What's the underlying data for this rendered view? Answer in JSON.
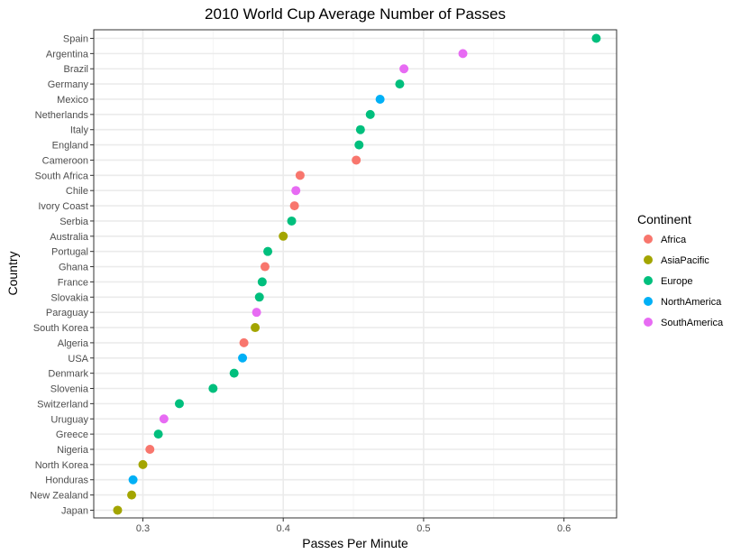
{
  "chart_data": {
    "type": "scatter",
    "title": "2010 World Cup Average Number of Passes",
    "xlabel": "Passes Per Minute",
    "ylabel": "Country",
    "xlim": [
      0.265,
      0.6375
    ],
    "x_ticks": [
      0.3,
      0.4,
      0.5,
      0.6
    ],
    "x_tick_labels": [
      "0.3",
      "0.4",
      "0.5",
      "0.6"
    ],
    "grid": true,
    "legend": {
      "title": "Continent",
      "position": "right",
      "entries": [
        {
          "name": "Africa",
          "color": "#F8766D"
        },
        {
          "name": "AsiaPacific",
          "color": "#A3A500"
        },
        {
          "name": "Europe",
          "color": "#00BF7D"
        },
        {
          "name": "NorthAmerica",
          "color": "#00B0F6"
        },
        {
          "name": "SouthAmerica",
          "color": "#E76BF3"
        }
      ]
    },
    "categories": [
      "Spain",
      "Argentina",
      "Brazil",
      "Germany",
      "Mexico",
      "Netherlands",
      "Italy",
      "England",
      "Cameroon",
      "South Africa",
      "Chile",
      "Ivory Coast",
      "Serbia",
      "Australia",
      "Portugal",
      "Ghana",
      "France",
      "Slovakia",
      "Paraguay",
      "South Korea",
      "Algeria",
      "USA",
      "Denmark",
      "Slovenia",
      "Switzerland",
      "Uruguay",
      "Greece",
      "Nigeria",
      "North Korea",
      "Honduras",
      "New Zealand",
      "Japan"
    ],
    "points": [
      {
        "country": "Spain",
        "x": 0.623,
        "continent": "Europe"
      },
      {
        "country": "Argentina",
        "x": 0.528,
        "continent": "SouthAmerica"
      },
      {
        "country": "Brazil",
        "x": 0.486,
        "continent": "SouthAmerica"
      },
      {
        "country": "Germany",
        "x": 0.483,
        "continent": "Europe"
      },
      {
        "country": "Mexico",
        "x": 0.469,
        "continent": "NorthAmerica"
      },
      {
        "country": "Netherlands",
        "x": 0.462,
        "continent": "Europe"
      },
      {
        "country": "Italy",
        "x": 0.455,
        "continent": "Europe"
      },
      {
        "country": "England",
        "x": 0.454,
        "continent": "Europe"
      },
      {
        "country": "Cameroon",
        "x": 0.452,
        "continent": "Africa"
      },
      {
        "country": "South Africa",
        "x": 0.412,
        "continent": "Africa"
      },
      {
        "country": "Chile",
        "x": 0.409,
        "continent": "SouthAmerica"
      },
      {
        "country": "Ivory Coast",
        "x": 0.408,
        "continent": "Africa"
      },
      {
        "country": "Serbia",
        "x": 0.406,
        "continent": "Europe"
      },
      {
        "country": "Australia",
        "x": 0.4,
        "continent": "AsiaPacific"
      },
      {
        "country": "Portugal",
        "x": 0.389,
        "continent": "Europe"
      },
      {
        "country": "Ghana",
        "x": 0.387,
        "continent": "Africa"
      },
      {
        "country": "France",
        "x": 0.385,
        "continent": "Europe"
      },
      {
        "country": "Slovakia",
        "x": 0.383,
        "continent": "Europe"
      },
      {
        "country": "Paraguay",
        "x": 0.381,
        "continent": "SouthAmerica"
      },
      {
        "country": "South Korea",
        "x": 0.38,
        "continent": "AsiaPacific"
      },
      {
        "country": "Algeria",
        "x": 0.372,
        "continent": "Africa"
      },
      {
        "country": "USA",
        "x": 0.371,
        "continent": "NorthAmerica"
      },
      {
        "country": "Denmark",
        "x": 0.365,
        "continent": "Europe"
      },
      {
        "country": "Slovenia",
        "x": 0.35,
        "continent": "Europe"
      },
      {
        "country": "Switzerland",
        "x": 0.326,
        "continent": "Europe"
      },
      {
        "country": "Uruguay",
        "x": 0.315,
        "continent": "SouthAmerica"
      },
      {
        "country": "Greece",
        "x": 0.311,
        "continent": "Europe"
      },
      {
        "country": "Nigeria",
        "x": 0.305,
        "continent": "Africa"
      },
      {
        "country": "North Korea",
        "x": 0.3,
        "continent": "AsiaPacific"
      },
      {
        "country": "Honduras",
        "x": 0.293,
        "continent": "NorthAmerica"
      },
      {
        "country": "New Zealand",
        "x": 0.292,
        "continent": "AsiaPacific"
      },
      {
        "country": "Japan",
        "x": 0.282,
        "continent": "AsiaPacific"
      }
    ]
  }
}
